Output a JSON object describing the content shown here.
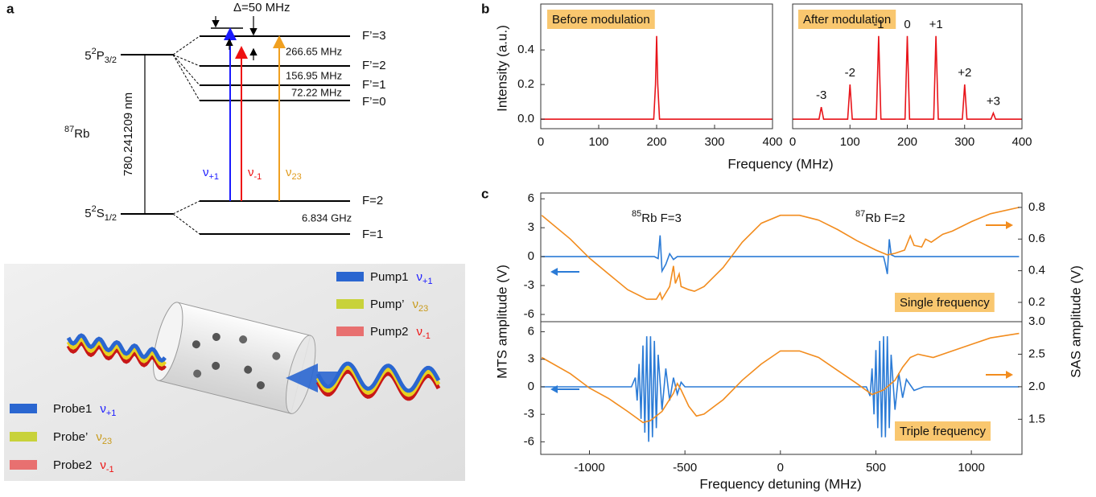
{
  "panel_labels": [
    "a",
    "b",
    "c"
  ],
  "energy_diagram": {
    "delta": "Δ=50 MHz",
    "excited": {
      "base": "5",
      "sup": "2",
      "term": "P",
      "sub": "3/2"
    },
    "ground": {
      "base": "5",
      "sup": "2",
      "term": "S",
      "sub": "1/2"
    },
    "excited_levels": [
      "F’=3",
      "F’=2",
      "F’=1",
      "F’=0"
    ],
    "excited_splittings": [
      "266.65 MHz",
      "156.95 MHz",
      "72.22 MHz"
    ],
    "ground_levels": [
      "F=2",
      "F=1"
    ],
    "ground_splitting": "6.834 GHz",
    "wavelength": "780.241209 nm",
    "atom": {
      "sup": "87",
      "text": "Rb"
    },
    "transitions": [
      {
        "symbol": "ν",
        "sub": "+1"
      },
      {
        "symbol": "ν",
        "sub": "-1"
      },
      {
        "symbol": "ν",
        "sub": "23"
      }
    ]
  },
  "setup_legend": {
    "pumps": [
      {
        "name": "Pump1",
        "symbol": "ν",
        "sub": "+1"
      },
      {
        "name": "Pump’",
        "symbol": "ν",
        "sub": "23"
      },
      {
        "name": "Pump2",
        "symbol": "ν",
        "sub": "-1"
      }
    ],
    "probes": [
      {
        "name": "Probe1",
        "symbol": "ν",
        "sub": "+1"
      },
      {
        "name": "Probe’",
        "symbol": "ν",
        "sub": "23"
      },
      {
        "name": "Probe2",
        "symbol": "ν",
        "sub": "-1"
      }
    ]
  },
  "chart_data": [
    {
      "type": "line",
      "box_label": "Before modulation",
      "ylabel": "Intensity (a.u.)",
      "xlabel": "Frequency (MHz)",
      "x": [
        0,
        195,
        198,
        200,
        202,
        205,
        400
      ],
      "series": [
        {
          "color": "#e8141a",
          "values": [
            0,
            0,
            0.2,
            0.48,
            0.2,
            0,
            0
          ]
        }
      ],
      "xlim": [
        0,
        400
      ],
      "xticks": [
        0,
        100,
        200,
        300,
        400
      ],
      "ylim": [
        -0.055,
        0.665
      ],
      "yticks": [
        {
          "value": 0,
          "label": "0.0"
        },
        0.2,
        0.4
      ]
    },
    {
      "type": "line",
      "box_label": "After modulation",
      "x": [
        0,
        46,
        50,
        54,
        96,
        100,
        104,
        146,
        150,
        154,
        196,
        200,
        204,
        246,
        250,
        254,
        296,
        300,
        304,
        346,
        350,
        354,
        400
      ],
      "series": [
        {
          "color": "#e8141a",
          "values": [
            0,
            0,
            0.07,
            0,
            0,
            0.2,
            0,
            0,
            0.48,
            0,
            0,
            0.48,
            0,
            0,
            0.48,
            0,
            0,
            0.2,
            0,
            0,
            0.035,
            0,
            0
          ]
        }
      ],
      "peak_labels": [
        "-3",
        "-2",
        "-1",
        "0",
        "+1",
        "+2",
        "+3"
      ],
      "xlim": [
        0,
        400
      ],
      "xticks": [
        0,
        100,
        200,
        300,
        400
      ],
      "ylim": [
        -0.055,
        0.665
      ]
    },
    {
      "type": "line",
      "box_label": "Single frequency",
      "annotations": [
        {
          "sup": "85",
          "text": "Rb F=3"
        },
        {
          "sup": "87",
          "text": "Rb F=2"
        }
      ],
      "series": [
        {
          "color": "#2b7bd6",
          "x": [
            -1250,
            -660,
            -640,
            -630,
            -620,
            -600,
            -580,
            -560,
            -540,
            540,
            550,
            560,
            570,
            580,
            600,
            1250
          ],
          "values": [
            0,
            0,
            -0.2,
            2.2,
            -1.5,
            -0.8,
            0.3,
            -0.3,
            0,
            0,
            -0.8,
            -1.8,
            1.8,
            0.2,
            0,
            0
          ]
        },
        {
          "color": "#f28c1e",
          "axis": "y2",
          "x": [
            -1250,
            -1100,
            -1000,
            -900,
            -800,
            -700,
            -650,
            -630,
            -620,
            -580,
            -560,
            -550,
            -530,
            -520,
            -480,
            -450,
            -400,
            -300,
            -200,
            -100,
            0,
            100,
            200,
            300,
            400,
            500,
            560,
            600,
            650,
            680,
            700,
            740,
            760,
            790,
            850,
            900,
            1000,
            1100,
            1250
          ],
          "values": [
            0.75,
            0.6,
            0.48,
            0.38,
            0.28,
            0.22,
            0.22,
            0.26,
            0.22,
            0.3,
            0.43,
            0.32,
            0.38,
            0.3,
            0.28,
            0.27,
            0.3,
            0.42,
            0.58,
            0.7,
            0.75,
            0.75,
            0.72,
            0.66,
            0.59,
            0.53,
            0.5,
            0.51,
            0.53,
            0.62,
            0.56,
            0.55,
            0.6,
            0.58,
            0.63,
            0.65,
            0.71,
            0.76,
            0.8
          ]
        }
      ],
      "xlim": [
        -1255,
        1265
      ],
      "ylim": [
        -6.75,
        6.6
      ],
      "yticks": [
        -6,
        -3,
        0,
        3,
        6
      ],
      "y2lim": [
        0.078,
        0.891
      ],
      "y2ticks": [
        0.2,
        0.4,
        0.6,
        0.8
      ]
    },
    {
      "type": "line",
      "box_label": "Triple frequency",
      "xlabel": "Frequency detuning (MHz)",
      "ylabel": "MTS amplitude (V)",
      "y2label": "SAS amplitude (V)",
      "series": [
        {
          "color": "#2b7bd6",
          "x": [
            -1250,
            -780,
            -760,
            -750,
            -740,
            -730,
            -720,
            -710,
            -700,
            -690,
            -680,
            -670,
            -660,
            -650,
            -640,
            -620,
            -600,
            -580,
            -560,
            -540,
            -520,
            -500,
            450,
            470,
            480,
            490,
            500,
            510,
            520,
            530,
            540,
            550,
            560,
            570,
            580,
            600,
            620,
            640,
            660,
            700,
            750,
            1250
          ],
          "values": [
            0,
            0,
            1,
            -1.5,
            2.5,
            -3.5,
            4.5,
            -5,
            5.5,
            -6,
            5.5,
            -5.5,
            5,
            -4.5,
            3.5,
            -2.5,
            2,
            -1.5,
            1,
            -0.8,
            0.5,
            0,
            0,
            -1,
            2,
            -3,
            4,
            -4.5,
            5,
            -5.5,
            5.5,
            -5.5,
            5.5,
            -4.5,
            3.5,
            -2.5,
            1.5,
            -1.2,
            0.8,
            -0.4,
            0,
            0
          ]
        },
        {
          "color": "#f28c1e",
          "axis": "y2",
          "x": [
            -1250,
            -1100,
            -1000,
            -900,
            -800,
            -720,
            -680,
            -620,
            -560,
            -540,
            -520,
            -480,
            -440,
            -400,
            -300,
            -200,
            -100,
            0,
            100,
            200,
            300,
            400,
            480,
            540,
            600,
            640,
            680,
            720,
            800,
            900,
            1000,
            1100,
            1250
          ],
          "values": [
            2.45,
            2.2,
            1.98,
            1.82,
            1.62,
            1.45,
            1.48,
            1.62,
            1.9,
            2.05,
            1.95,
            1.7,
            1.55,
            1.58,
            1.8,
            2.1,
            2.35,
            2.55,
            2.55,
            2.45,
            2.25,
            2.05,
            1.88,
            1.95,
            2.1,
            2.3,
            2.45,
            2.5,
            2.45,
            2.55,
            2.65,
            2.75,
            2.82
          ]
        }
      ],
      "xlim": [
        -1255,
        1265
      ],
      "xticks": [
        -1000,
        -500,
        0,
        500,
        1000
      ],
      "ylim": [
        -7.37,
        7.1
      ],
      "yticks": [
        -6,
        -3,
        0,
        3,
        6
      ],
      "y2lim": [
        0.96,
        3.0
      ],
      "y2ticks": [
        1.5,
        {
          "value": 2,
          "label": "2.0"
        },
        2.5,
        {
          "value": 3,
          "label": "3.0"
        }
      ]
    }
  ]
}
